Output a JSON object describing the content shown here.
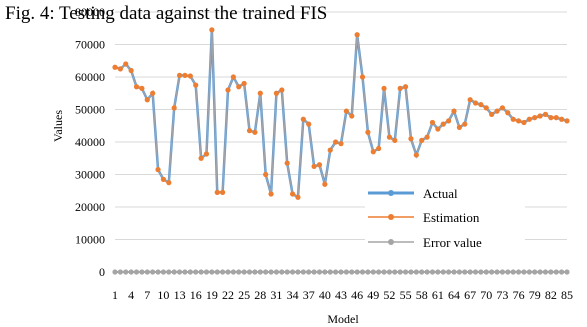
{
  "caption": "Fig. 4: Testing data against the trained FIS",
  "chart_data": {
    "type": "line",
    "xlabel": "Model",
    "ylabel": "Values",
    "ylim": [
      0,
      80000
    ],
    "yticks": [
      0,
      10000,
      20000,
      30000,
      40000,
      50000,
      60000,
      70000,
      80000
    ],
    "ytick_labels": [
      "0",
      "10000",
      "20000",
      "30000",
      "40000",
      "50000",
      "60000",
      "70000",
      "80000"
    ],
    "xlim": [
      1,
      85
    ],
    "xticks": [
      1,
      4,
      7,
      10,
      13,
      16,
      19,
      22,
      25,
      28,
      31,
      34,
      37,
      40,
      43,
      46,
      49,
      52,
      55,
      58,
      61,
      64,
      67,
      70,
      73,
      76,
      79,
      82,
      85
    ],
    "xtick_labels": [
      "1",
      "4",
      "7",
      "10",
      "13",
      "16",
      "19",
      "22",
      "25",
      "28",
      "31",
      "34",
      "37",
      "40",
      "43",
      "46",
      "49",
      "52",
      "55",
      "58",
      "61",
      "64",
      "67",
      "70",
      "73",
      "76",
      "79",
      "82",
      "85"
    ],
    "grid": "horizontal",
    "legend_position": "lower-right",
    "series": [
      {
        "name": "Actual",
        "color": "#5b9bd5",
        "marker": "none",
        "values": [
          63000,
          62500,
          64000,
          62000,
          57000,
          56500,
          53000,
          55000,
          31500,
          28500,
          27500,
          50500,
          60500,
          60500,
          60300,
          57500,
          35000,
          36300,
          74500,
          24500,
          24500,
          56000,
          60000,
          57000,
          58000,
          43500,
          43000,
          55000,
          30000,
          24000,
          55000,
          56000,
          33500,
          24000,
          23000,
          47000,
          45500,
          32500,
          33000,
          27000,
          37500,
          40000,
          39500,
          49500,
          48000,
          73000,
          60000,
          43000,
          37000,
          38000,
          56500,
          41500,
          40500,
          56500,
          57000,
          41000,
          36000,
          40500,
          41500,
          46000,
          44000,
          45500,
          46500,
          49500,
          44500,
          45500,
          53000,
          52000,
          51500,
          50500,
          48500,
          49500,
          50500,
          49000,
          47000,
          46500,
          46000,
          47000,
          47500,
          48000,
          48500,
          47500,
          47500,
          47000,
          46500
        ]
      },
      {
        "name": "Estimation",
        "color": "#ed7d31",
        "marker": "dot",
        "values": [
          63000,
          62500,
          64000,
          62000,
          57000,
          56500,
          53000,
          55000,
          31500,
          28500,
          27500,
          50500,
          60500,
          60500,
          60300,
          57500,
          35000,
          36300,
          74500,
          24500,
          24500,
          56000,
          60000,
          57000,
          58000,
          43500,
          43000,
          55000,
          30000,
          24000,
          55000,
          56000,
          33500,
          24000,
          23000,
          47000,
          45500,
          32500,
          33000,
          27000,
          37500,
          40000,
          39500,
          49500,
          48000,
          73000,
          60000,
          43000,
          37000,
          38000,
          56500,
          41500,
          40500,
          56500,
          57000,
          41000,
          36000,
          40500,
          41500,
          46000,
          44000,
          45500,
          46500,
          49500,
          44500,
          45500,
          53000,
          52000,
          51500,
          50500,
          48500,
          49500,
          50500,
          49000,
          47000,
          46500,
          46000,
          47000,
          47500,
          48000,
          48500,
          47500,
          47500,
          47000,
          46500
        ]
      },
      {
        "name": "Error value",
        "color": "#a5a5a5",
        "marker": "dot",
        "values": [
          0,
          0,
          0,
          0,
          0,
          0,
          0,
          0,
          0,
          0,
          0,
          0,
          0,
          0,
          0,
          0,
          0,
          0,
          0,
          0,
          0,
          0,
          0,
          0,
          0,
          0,
          0,
          0,
          0,
          0,
          0,
          0,
          0,
          0,
          0,
          0,
          0,
          0,
          0,
          0,
          0,
          0,
          0,
          0,
          0,
          0,
          0,
          0,
          0,
          0,
          0,
          0,
          0,
          0,
          0,
          0,
          0,
          0,
          0,
          0,
          0,
          0,
          0,
          0,
          0,
          0,
          0,
          0,
          0,
          0,
          0,
          0,
          0,
          0,
          0,
          0,
          0,
          0,
          0,
          0,
          0,
          0,
          0,
          0,
          0
        ]
      }
    ]
  }
}
